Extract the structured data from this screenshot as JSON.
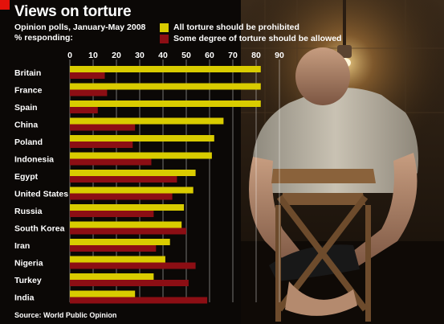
{
  "header": {
    "title": "Views on torture",
    "subtitle": "Opinion polls, January-May 2008",
    "unit": "% responding:"
  },
  "legend": [
    {
      "label": "All torture should be prohibited",
      "color": "#d9cc00"
    },
    {
      "label": "Some degree of torture should be allowed",
      "color": "#8c0e14"
    }
  ],
  "source": "Source: World Public Opinion",
  "chart_data": {
    "type": "bar",
    "orientation": "horizontal",
    "title": "Views on torture",
    "xlim": [
      0,
      90
    ],
    "xticks": [
      "0",
      "10",
      "20",
      "30",
      "40",
      "50",
      "60",
      "70",
      "80",
      "90"
    ],
    "categories": [
      "Britain",
      "France",
      "Spain",
      "China",
      "Poland",
      "Indonesia",
      "Egypt",
      "United States",
      "Russia",
      "South Korea",
      "Iran",
      "Nigeria",
      "Turkey",
      "India"
    ],
    "series": [
      {
        "name": "All torture should be prohibited",
        "color": "#d9cc00",
        "values": [
          82,
          82,
          82,
          66,
          62,
          61,
          54,
          53,
          49,
          48,
          43,
          41,
          36,
          28
        ]
      },
      {
        "name": "Some degree of torture should be allowed",
        "color": "#8c0e14",
        "values": [
          15,
          16,
          12,
          28,
          27,
          35,
          46,
          44,
          36,
          50,
          37,
          54,
          51,
          59
        ]
      }
    ]
  }
}
